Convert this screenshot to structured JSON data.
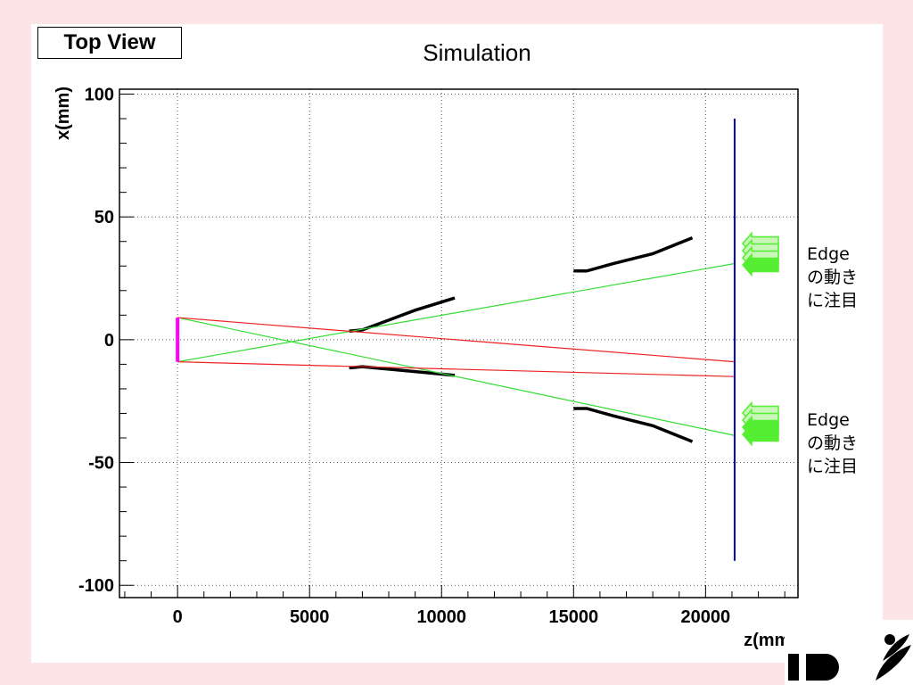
{
  "view_label": "Top View",
  "chart_data": {
    "type": "line",
    "title": "Simulation",
    "xlabel": "z(mm)",
    "ylabel": "x(mm)",
    "xlim": [
      -2200,
      23500
    ],
    "ylim": [
      -105,
      102
    ],
    "x_ticks": [
      0,
      5000,
      10000,
      15000,
      20000
    ],
    "y_ticks": [
      100,
      50,
      0,
      -50,
      -100
    ],
    "grid": true,
    "series": [
      {
        "color": "#000000",
        "style": "thick",
        "x": [
          6500,
          7000,
          8000,
          9000,
          10500
        ],
        "y": [
          3.5,
          4,
          8,
          12,
          17
        ]
      },
      {
        "color": "#000000",
        "style": "thick",
        "x": [
          6500,
          7000,
          8000,
          9000,
          10500
        ],
        "y": [
          -11.5,
          -11,
          -12,
          -13,
          -14.5
        ]
      },
      {
        "color": "#000000",
        "style": "thick",
        "x": [
          15000,
          15500,
          16500,
          18000,
          19500
        ],
        "y": [
          28,
          28,
          31,
          35,
          41.5
        ]
      },
      {
        "color": "#000000",
        "style": "thick",
        "x": [
          15000,
          15500,
          16500,
          18000,
          19500
        ],
        "y": [
          -28,
          -28,
          -31,
          -35,
          -41.5
        ]
      },
      {
        "color": "#33dd33",
        "style": "thin",
        "x": [
          0,
          21100
        ],
        "y": [
          9,
          -39
        ]
      },
      {
        "color": "#33dd33",
        "style": "thin",
        "x": [
          0,
          21100
        ],
        "y": [
          -9,
          31
        ]
      },
      {
        "color": "#ee2222",
        "style": "thin",
        "x": [
          0,
          21100
        ],
        "y": [
          9,
          -9
        ]
      },
      {
        "color": "#ee2222",
        "style": "thin",
        "x": [
          0,
          21100
        ],
        "y": [
          -9,
          -15
        ]
      },
      {
        "color": "#ff00ff",
        "style": "source",
        "x": [
          0,
          0
        ],
        "y": [
          9,
          -9
        ]
      },
      {
        "color": "#0000aa",
        "style": "detector",
        "x": [
          21100,
          21100
        ],
        "y": [
          90,
          -90
        ]
      }
    ]
  },
  "annotations": [
    {
      "text": "Edge\nの動き\nに注目",
      "color": "#55ee33"
    },
    {
      "text": "Edge\nの動き\nに注目",
      "color": "#55ee33"
    }
  ]
}
